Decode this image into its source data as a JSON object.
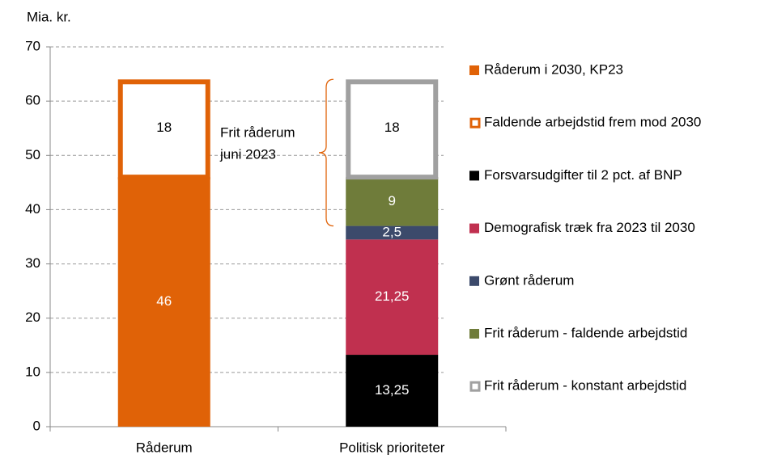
{
  "chart_data": {
    "type": "stacked_bar",
    "y_label": "Mia. kr.",
    "categories": [
      "Råderum",
      "Politisk prioriteter"
    ],
    "series": [
      {
        "name": "Råderum i 2030, KP23",
        "color": "#E06207",
        "style": "fill",
        "values": [
          46,
          null
        ]
      },
      {
        "name": "Faldende arbejdstid frem mod 2030",
        "color": "#E06207",
        "style": "outline",
        "values": [
          18,
          null
        ]
      },
      {
        "name": "Forsvarsudgifter til 2 pct. af BNP",
        "color": "#000000",
        "style": "fill",
        "values": [
          null,
          13.25
        ],
        "value_labels": [
          null,
          "13,25"
        ]
      },
      {
        "name": "Demografisk træk fra 2023 til 2030",
        "color": "#C0304F",
        "style": "fill",
        "values": [
          null,
          21.25
        ],
        "value_labels": [
          null,
          "21,25"
        ]
      },
      {
        "name": "Grønt råderum",
        "color": "#3C4A6B",
        "style": "fill",
        "values": [
          null,
          2.5
        ],
        "value_labels": [
          null,
          "2,5"
        ]
      },
      {
        "name": "Frit råderum - faldende arbejdstid",
        "color": "#6F7C3A",
        "style": "fill",
        "values": [
          null,
          9
        ]
      },
      {
        "name": "Frit råderum - konstant arbejdstid",
        "color": "#A0A0A0",
        "style": "outline",
        "values": [
          null,
          18
        ]
      }
    ],
    "annotation": [
      "Frit råderum",
      "juni 2023"
    ],
    "ylim": [
      0,
      70
    ],
    "yticks": [
      0,
      10,
      20,
      30,
      40,
      50,
      60,
      70
    ],
    "grid": true,
    "legend": "right"
  }
}
